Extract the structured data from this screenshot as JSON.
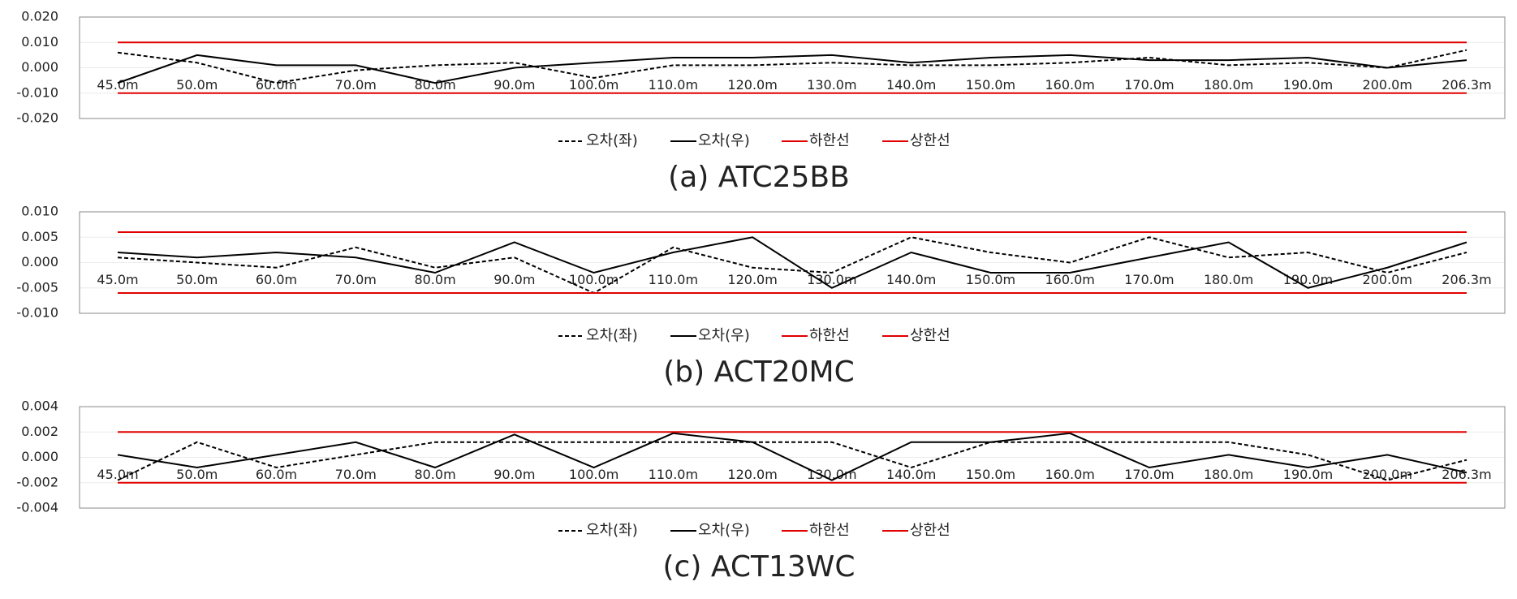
{
  "chart_data": [
    {
      "type": "line",
      "title": "(a) ATC25BB",
      "categories": [
        "45.0m",
        "50.0m",
        "60.0m",
        "70.0m",
        "80.0m",
        "90.0m",
        "100.0m",
        "110.0m",
        "120.0m",
        "130.0m",
        "140.0m",
        "150.0m",
        "160.0m",
        "170.0m",
        "180.0m",
        "190.0m",
        "200.0m",
        "206.3m"
      ],
      "ylim": [
        -0.02,
        0.02
      ],
      "yticks": [
        {
          "value": -0.02,
          "label": "-0.020"
        },
        {
          "value": -0.01,
          "label": "-0.010"
        },
        {
          "value": 0,
          "label": "0.000"
        },
        {
          "value": 0.01,
          "label": "0.010"
        },
        {
          "value": 0.02,
          "label": "0.020"
        }
      ],
      "grid": true,
      "series": [
        {
          "name": "오차(좌)",
          "color": "#000000",
          "linestyle": "dashed",
          "values": [
            0.006,
            0.002,
            -0.006,
            -0.001,
            0.001,
            0.002,
            -0.004,
            0.001,
            0.001,
            0.002,
            0.001,
            0.001,
            0.002,
            0.004,
            0.001,
            0.002,
            0,
            0.007
          ]
        },
        {
          "name": "오차(우)",
          "color": "#000000",
          "linestyle": "solid",
          "values": [
            -0.006,
            0.005,
            0.001,
            0.001,
            -0.006,
            0,
            0.002,
            0.004,
            0.004,
            0.005,
            0.002,
            0.004,
            0.005,
            0.003,
            0.003,
            0.004,
            0,
            0.003
          ]
        },
        {
          "name": "하한선",
          "color": "#e00000",
          "linestyle": "solid",
          "values": [
            -0.01,
            -0.01,
            -0.01,
            -0.01,
            -0.01,
            -0.01,
            -0.01,
            -0.01,
            -0.01,
            -0.01,
            -0.01,
            -0.01,
            -0.01,
            -0.01,
            -0.01,
            -0.01,
            -0.01,
            -0.01
          ]
        },
        {
          "name": "상한선",
          "color": "#e00000",
          "linestyle": "solid",
          "values": [
            0.01,
            0.01,
            0.01,
            0.01,
            0.01,
            0.01,
            0.01,
            0.01,
            0.01,
            0.01,
            0.01,
            0.01,
            0.01,
            0.01,
            0.01,
            0.01,
            0.01,
            0.01
          ]
        }
      ]
    },
    {
      "type": "line",
      "title": "(b) ACT20MC",
      "categories": [
        "45.0m",
        "50.0m",
        "60.0m",
        "70.0m",
        "80.0m",
        "90.0m",
        "100.0m",
        "110.0m",
        "120.0m",
        "130.0m",
        "140.0m",
        "150.0m",
        "160.0m",
        "170.0m",
        "180.0m",
        "190.0m",
        "200.0m",
        "206.3m"
      ],
      "ylim": [
        -0.01,
        0.01
      ],
      "yticks": [
        {
          "value": -0.01,
          "label": "-0.010"
        },
        {
          "value": -0.005,
          "label": "-0.005"
        },
        {
          "value": 0,
          "label": "0.000"
        },
        {
          "value": 0.005,
          "label": "0.005"
        },
        {
          "value": 0.01,
          "label": "0.010"
        }
      ],
      "grid": true,
      "series": [
        {
          "name": "오차(좌)",
          "color": "#000000",
          "linestyle": "dashed",
          "values": [
            0.001,
            0,
            -0.001,
            0.003,
            -0.001,
            0.001,
            -0.006,
            0.003,
            -0.001,
            -0.002,
            0.005,
            0.002,
            0,
            0.005,
            0.001,
            0.002,
            -0.002,
            0.002
          ]
        },
        {
          "name": "오차(우)",
          "color": "#000000",
          "linestyle": "solid",
          "values": [
            0.002,
            0.001,
            0.002,
            0.001,
            -0.002,
            0.004,
            -0.002,
            0.002,
            0.005,
            -0.005,
            0.002,
            -0.002,
            -0.002,
            0.001,
            0.004,
            -0.005,
            -0.001,
            0.004
          ]
        },
        {
          "name": "하한선",
          "color": "#e00000",
          "linestyle": "solid",
          "values": [
            -0.006,
            -0.006,
            -0.006,
            -0.006,
            -0.006,
            -0.006,
            -0.006,
            -0.006,
            -0.006,
            -0.006,
            -0.006,
            -0.006,
            -0.006,
            -0.006,
            -0.006,
            -0.006,
            -0.006,
            -0.006
          ]
        },
        {
          "name": "상한선",
          "color": "#e00000",
          "linestyle": "solid",
          "values": [
            0.006,
            0.006,
            0.006,
            0.006,
            0.006,
            0.006,
            0.006,
            0.006,
            0.006,
            0.006,
            0.006,
            0.006,
            0.006,
            0.006,
            0.006,
            0.006,
            0.006,
            0.006
          ]
        }
      ]
    },
    {
      "type": "line",
      "title": "(c) ACT13WC",
      "categories": [
        "45.0m",
        "50.0m",
        "60.0m",
        "70.0m",
        "80.0m",
        "90.0m",
        "100.0m",
        "110.0m",
        "120.0m",
        "130.0m",
        "140.0m",
        "150.0m",
        "160.0m",
        "170.0m",
        "180.0m",
        "190.0m",
        "200.0m",
        "206.3m"
      ],
      "ylim": [
        -0.004,
        0.004
      ],
      "yticks": [
        {
          "value": -0.004,
          "label": "-0.004"
        },
        {
          "value": -0.002,
          "label": "-0.002"
        },
        {
          "value": 0,
          "label": "0.000"
        },
        {
          "value": 0.002,
          "label": "0.002"
        },
        {
          "value": 0.004,
          "label": "0.004"
        }
      ],
      "grid": true,
      "series": [
        {
          "name": "오차(좌)",
          "color": "#000000",
          "linestyle": "dashed",
          "values": [
            -0.0018,
            0.0012,
            -0.0008,
            0.0002,
            0.0012,
            0.0012,
            0.0012,
            0.0012,
            0.0012,
            0.0012,
            -0.0008,
            0.0012,
            0.0012,
            0.0012,
            0.0012,
            0.0002,
            -0.0018,
            -0.0002
          ]
        },
        {
          "name": "오차(우)",
          "color": "#000000",
          "linestyle": "solid",
          "values": [
            0.0002,
            -0.0008,
            0.0002,
            0.0012,
            -0.0008,
            0.0018,
            -0.0008,
            0.0019,
            0.0012,
            -0.0018,
            0.0012,
            0.0012,
            0.0019,
            -0.0008,
            0.0002,
            -0.0008,
            0.0002,
            -0.0012
          ]
        },
        {
          "name": "하한선",
          "color": "#e00000",
          "linestyle": "solid",
          "values": [
            -0.002,
            -0.002,
            -0.002,
            -0.002,
            -0.002,
            -0.002,
            -0.002,
            -0.002,
            -0.002,
            -0.002,
            -0.002,
            -0.002,
            -0.002,
            -0.002,
            -0.002,
            -0.002,
            -0.002,
            -0.002
          ]
        },
        {
          "name": "상한선",
          "color": "#e00000",
          "linestyle": "solid",
          "values": [
            0.002,
            0.002,
            0.002,
            0.002,
            0.002,
            0.002,
            0.002,
            0.002,
            0.002,
            0.002,
            0.002,
            0.002,
            0.002,
            0.002,
            0.002,
            0.002,
            0.002,
            0.002
          ]
        }
      ]
    }
  ]
}
